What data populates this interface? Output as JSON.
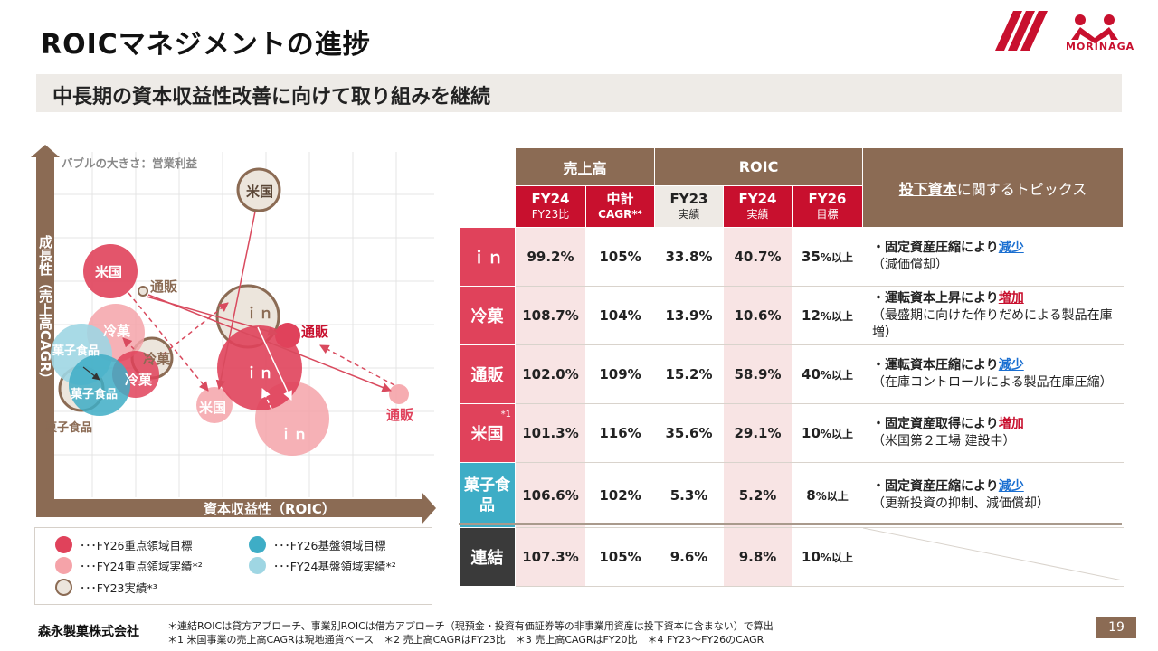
{
  "title": "ROICマネジメントの進捗",
  "subtitle": "中長期の資本収益性改善に向けて取り組みを継続",
  "logo": {
    "text": "MORINAGA",
    "color": "#c8102e"
  },
  "chart": {
    "bubble_note": "バブルの大きさ：営業利益",
    "y_axis_label": "成長性（売上高CAGR）",
    "x_axis_label": "資本収益性（ROIC）",
    "bubble_labels": {
      "us_fy23": "米国",
      "us_fy26": "米国",
      "us_fy24": "米国",
      "tsuhan_fy23": "通販",
      "tsuhan_fy26": "通販",
      "tsuhan_fy24": "通販",
      "in_fy23": "ｉｎ",
      "in_fy26": "ｉｎ",
      "in_fy24": "ｉｎ",
      "reika_fy24": "冷菓",
      "reika_fy23": "冷菓",
      "reika_fy26": "冷菓",
      "kashi_fy24": "菓子食品",
      "kashi_fy26": "菓子食品",
      "kashi_fy23": "菓子食品"
    }
  },
  "legend": [
    {
      "label": "･･･FY26重点領域目標",
      "color": "#e0425b"
    },
    {
      "label": "･･･FY26基盤領域目標",
      "color": "#3eadc6"
    },
    {
      "label": "･･･FY24重点領域実績*²",
      "color": "#f5a3a9"
    },
    {
      "label": "･･･FY24基盤領域実績*²",
      "color": "#9fd6e3"
    },
    {
      "label": "･･･FY23実績*³",
      "color": "#ece5dc"
    }
  ],
  "table": {
    "group_sales": "売上高",
    "group_roic": "ROIC",
    "topics_header_underlined": "投下資本",
    "topics_header_rest": "に関するトピックス",
    "sub_fy24": "FY24",
    "sub_fy24_note": "FY23比",
    "sub_chukei": "中計",
    "sub_chukei_note": "CAGR*⁴",
    "sub_fy23": "FY23",
    "sub_fy23_note": "実績",
    "sub_roic_fy24": "FY24",
    "sub_roic_fy24_note": "実績",
    "sub_fy26": "FY26",
    "sub_fy26_note": "目標",
    "rows": [
      {
        "name": "ｉｎ",
        "sales_fy24": "99.2%",
        "cagr": "105%",
        "roic_fy23": "33.8%",
        "roic_fy24": "40.7%",
        "fy26": "35",
        "fy26_suffix": "%以上",
        "topic_bold": "・固定資産圧縮により",
        "topic_mark": "減少",
        "topic_detail": "（減価償却）"
      },
      {
        "name": "冷菓",
        "sales_fy24": "108.7%",
        "cagr": "104%",
        "roic_fy23": "13.9%",
        "roic_fy24": "10.6%",
        "fy26": "12",
        "fy26_suffix": "%以上",
        "topic_bold": "・運転資本上昇により",
        "topic_mark": "増加",
        "topic_detail": "（最盛期に向けた作りだめによる製品在庫増）"
      },
      {
        "name": "通販",
        "sales_fy24": "102.0%",
        "cagr": "109%",
        "roic_fy23": "15.2%",
        "roic_fy24": "58.9%",
        "fy26": "40",
        "fy26_suffix": "%以上",
        "topic_bold": "・運転資本圧縮により",
        "topic_mark": "減少",
        "topic_detail": "（在庫コントロールによる製品在庫圧縮）"
      },
      {
        "name": "米国",
        "name_note": "*1",
        "sales_fy24": "101.3%",
        "cagr": "116%",
        "roic_fy23": "35.6%",
        "roic_fy24": "29.1%",
        "fy26": "10",
        "fy26_suffix": "%以上",
        "topic_bold": "・固定資産取得により",
        "topic_mark": "増加",
        "topic_detail": "（米国第２工場 建設中）"
      },
      {
        "name": "菓子食品",
        "sales_fy24": "106.6%",
        "cagr": "102%",
        "roic_fy23": "5.3%",
        "roic_fy24": "5.2%",
        "fy26": "8",
        "fy26_suffix": "%以上",
        "topic_bold": "・固定資産圧縮により",
        "topic_mark": "減少",
        "topic_detail": "（更新投資の抑制、減価償却）"
      },
      {
        "name": "連結",
        "sales_fy24": "107.3%",
        "cagr": "105%",
        "roic_fy23": "9.6%",
        "roic_fy24": "9.8%",
        "fy26": "10",
        "fy26_suffix": "%以上"
      }
    ]
  },
  "footer": {
    "company": "森永製菓株式会社",
    "note1": "＊連結ROICは貸方アプローチ、事業別ROICは借方アプローチ（現預金・投資有価証券等の非事業用資産は投下資本に含まない）で算出",
    "note2": "＊1 米国事業の売上高CAGRは現地通貨ベース　＊2 売上高CAGRはFY23比　＊3 売上高CAGRはFY20比　＊4 FY23～FY26のCAGR",
    "page": "19"
  }
}
